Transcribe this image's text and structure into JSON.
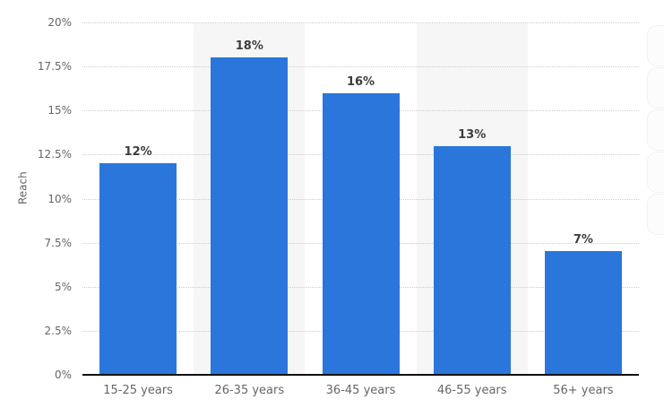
{
  "chart_data": {
    "type": "bar",
    "title": "",
    "xlabel": "",
    "ylabel": "Reach",
    "categories": [
      "15-25 years",
      "26-35 years",
      "36-45 years",
      "46-55 years",
      "56+ years"
    ],
    "values": [
      12,
      18,
      16,
      13,
      7
    ],
    "value_labels": [
      "12%",
      "18%",
      "16%",
      "13%",
      "7%"
    ],
    "ylim": [
      0,
      20
    ],
    "yticks": [
      0,
      2.5,
      5,
      7.5,
      10,
      12.5,
      15,
      17.5,
      20
    ],
    "ytick_labels": [
      "0%",
      "2.5%",
      "5%",
      "7.5%",
      "10%",
      "12.5%",
      "15%",
      "17.5%",
      "20%"
    ],
    "legend": "none",
    "grid": "horizontal-dotted",
    "bar_color": "#2b76db",
    "stripe_color": "#f6f6f6",
    "striped_columns": [
      1,
      3
    ],
    "axis_line_color": "#111111",
    "tick_label_color": "#666666",
    "value_label_color": "#3d3d3d"
  },
  "side_panel": {
    "faded_button_count": 5
  }
}
